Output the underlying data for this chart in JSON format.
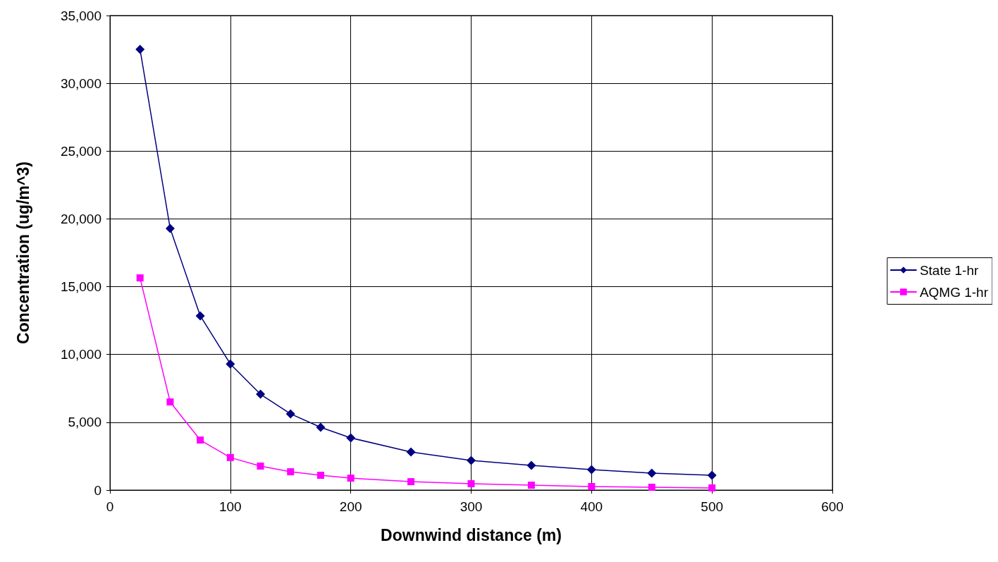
{
  "chart_data": {
    "type": "line",
    "xlabel": "Downwind distance (m)",
    "ylabel": "Concentration (ug/m^3)",
    "x": [
      25,
      50,
      75,
      100,
      125,
      150,
      175,
      200,
      250,
      300,
      350,
      400,
      450,
      500
    ],
    "series": [
      {
        "name": "State 1-hr",
        "color": "#000080",
        "marker": "diamond",
        "values": [
          32500,
          19300,
          12850,
          9300,
          7070,
          5620,
          4630,
          3850,
          2810,
          2180,
          1820,
          1510,
          1250,
          1090
        ]
      },
      {
        "name": "AQMG 1-hr",
        "color": "#ff00ff",
        "marker": "square",
        "values": [
          15650,
          6500,
          3690,
          2400,
          1770,
          1350,
          1090,
          880,
          620,
          470,
          360,
          260,
          210,
          160
        ]
      }
    ],
    "xlim": [
      0,
      600
    ],
    "xticks": [
      0,
      100,
      200,
      300,
      400,
      500,
      600
    ],
    "ylim": [
      0,
      35000
    ],
    "yticks": [
      {
        "value": 0,
        "label": "0"
      },
      {
        "value": 5000,
        "label": "5,000"
      },
      {
        "value": 10000,
        "label": "10,000"
      },
      {
        "value": 15000,
        "label": "15,000"
      },
      {
        "value": 20000,
        "label": "20,000"
      },
      {
        "value": 25000,
        "label": "25,000"
      },
      {
        "value": 30000,
        "label": "30,000"
      },
      {
        "value": 35000,
        "label": "35,000"
      }
    ],
    "grid": true,
    "legend": "right",
    "line_style": "solid"
  }
}
